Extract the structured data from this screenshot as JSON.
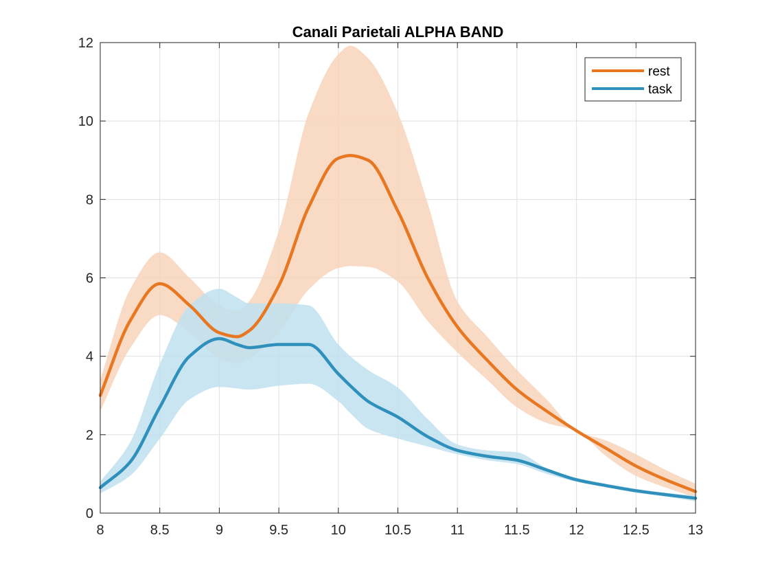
{
  "chart_data": {
    "type": "line",
    "title": "Canali Parietali ALPHA BAND",
    "xlabel": "",
    "ylabel": "",
    "xlim": [
      8,
      13
    ],
    "ylim": [
      0,
      12
    ],
    "x_ticks": [
      8,
      8.5,
      9,
      9.5,
      10,
      10.5,
      11,
      11.5,
      12,
      12.5,
      13
    ],
    "x_tick_labels": [
      "8",
      "8.5",
      "9",
      "9.5",
      "10",
      "10.5",
      "11",
      "11.5",
      "12",
      "12.5",
      "13"
    ],
    "y_ticks": [
      0,
      2,
      4,
      6,
      8,
      10,
      12
    ],
    "y_tick_labels": [
      "0",
      "2",
      "4",
      "6",
      "8",
      "10",
      "12"
    ],
    "grid": true,
    "legend_position": "top-right",
    "x": [
      8,
      8.25,
      8.5,
      8.75,
      9,
      9.15,
      9.25,
      9.5,
      9.75,
      10,
      10.1,
      10.25,
      10.5,
      10.75,
      11,
      11.25,
      11.5,
      11.75,
      12,
      12.25,
      12.5,
      12.75,
      13
    ],
    "series": [
      {
        "name": "rest",
        "color": "#E87722",
        "band_color": "#F8D3BB",
        "values": [
          3.0,
          4.9,
          5.85,
          5.3,
          4.6,
          4.5,
          4.65,
          5.8,
          7.8,
          9.05,
          9.12,
          9.0,
          7.7,
          6.0,
          4.75,
          3.9,
          3.15,
          2.6,
          2.1,
          1.65,
          1.2,
          0.85,
          0.55
        ],
        "upper": [
          3.4,
          5.7,
          6.65,
          6.0,
          5.3,
          5.15,
          5.4,
          7.2,
          10.2,
          11.7,
          11.92,
          11.6,
          10.2,
          7.9,
          5.4,
          4.5,
          3.65,
          2.9,
          2.1,
          1.85,
          1.5,
          1.1,
          0.75
        ],
        "lower": [
          2.6,
          4.2,
          5.05,
          4.6,
          3.95,
          3.82,
          3.95,
          4.6,
          5.7,
          6.25,
          6.3,
          6.28,
          5.9,
          4.9,
          4.1,
          3.4,
          2.7,
          2.3,
          2.1,
          1.45,
          0.95,
          0.65,
          0.4
        ]
      },
      {
        "name": "task",
        "color": "#3090BC",
        "band_color": "#C0E1EF",
        "values": [
          0.65,
          1.3,
          2.7,
          4.0,
          4.45,
          4.3,
          4.22,
          4.3,
          4.3,
          3.55,
          3.25,
          2.85,
          2.45,
          1.95,
          1.6,
          1.45,
          1.35,
          1.1,
          0.85,
          0.7,
          0.57,
          0.47,
          0.38
        ],
        "upper": [
          0.8,
          1.8,
          3.8,
          5.3,
          5.72,
          5.5,
          5.35,
          5.35,
          5.3,
          4.3,
          4.0,
          3.65,
          3.2,
          2.4,
          1.75,
          1.6,
          1.55,
          1.15,
          0.9,
          0.75,
          0.62,
          0.52,
          0.45
        ],
        "lower": [
          0.5,
          0.95,
          1.9,
          2.9,
          3.22,
          3.18,
          3.15,
          3.25,
          3.3,
          2.85,
          2.55,
          2.15,
          1.9,
          1.7,
          1.5,
          1.35,
          1.25,
          1.0,
          0.8,
          0.66,
          0.52,
          0.42,
          0.3
        ]
      }
    ]
  }
}
